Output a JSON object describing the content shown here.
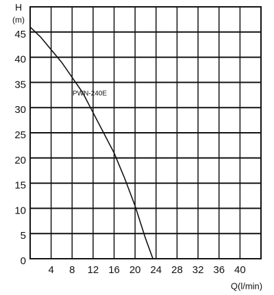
{
  "chart_data": {
    "type": "line",
    "y_label": "H",
    "y_unit": "(m)",
    "x_label": "Q(l/min)",
    "annotation": "PWN-240E",
    "series": [
      {
        "name": "PWN-240E",
        "color": "#111111",
        "x": [
          0,
          2,
          4,
          6,
          8,
          10,
          12,
          14,
          16,
          18,
          20,
          22,
          23.4
        ],
        "values": [
          46,
          44,
          41.5,
          39,
          36,
          33,
          29,
          25,
          21,
          16,
          10.5,
          4,
          0
        ]
      }
    ],
    "xlim": [
      0,
      44
    ],
    "xticks": [
      4,
      8,
      12,
      16,
      20,
      24,
      28,
      32,
      36,
      40
    ],
    "ylim": [
      0,
      50
    ],
    "yticks": [
      0,
      5,
      10,
      15,
      20,
      25,
      30,
      35,
      40,
      45
    ],
    "grid": true
  }
}
